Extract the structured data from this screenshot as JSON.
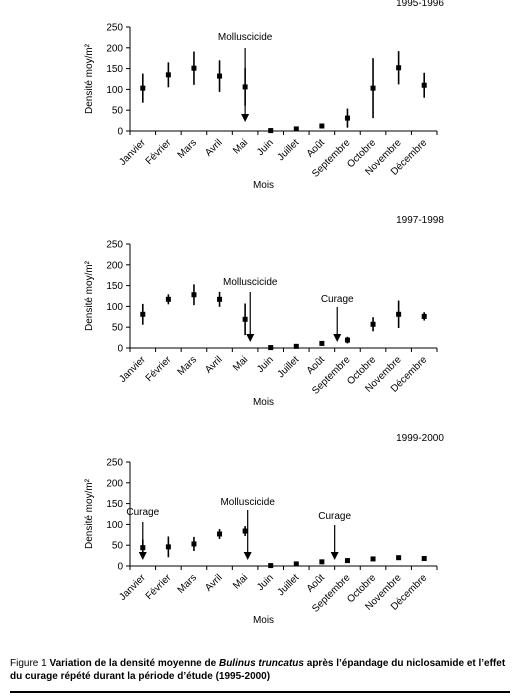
{
  "chart_data": [
    {
      "type": "errorbar",
      "subtitle": "1995-1996",
      "y_label": "Densité  moy/m²",
      "x_label": "Mois",
      "categories": [
        "Janvier",
        "Février",
        "Mars",
        "Avril",
        "Mai",
        "Juin",
        "Juillet",
        "Août",
        "Septembre",
        "Octobre",
        "Novembre",
        "Décembre"
      ],
      "values": [
        103,
        135,
        151,
        132,
        106,
        1,
        5,
        12,
        31,
        103,
        152,
        110
      ],
      "errors": [
        35,
        30,
        40,
        38,
        45,
        0,
        0,
        0,
        23,
        72,
        40,
        30
      ],
      "color": "#000000",
      "ylim": [
        0,
        250
      ],
      "yticks": [
        0,
        50,
        100,
        150,
        200,
        250
      ],
      "annotations": [
        "Molluscicide"
      ]
    },
    {
      "type": "errorbar",
      "subtitle": "1997-1998",
      "y_label": "Densité  moy/m²",
      "x_label": "Mois",
      "categories": [
        "Janvier",
        "Février",
        "Mars",
        "Avril",
        "Mai",
        "Juin",
        "Juillet",
        "Août",
        "Septembre",
        "Octobre",
        "Novembre",
        "Décembre"
      ],
      "values": [
        81,
        117,
        128,
        117,
        69,
        1,
        4,
        11,
        19,
        57,
        81,
        76
      ],
      "errors": [
        25,
        12,
        25,
        18,
        38,
        0,
        0,
        0,
        8,
        17,
        33,
        10
      ],
      "color": "#000000",
      "ylim": [
        0,
        250
      ],
      "yticks": [
        0,
        50,
        100,
        150,
        200,
        250
      ],
      "annotations": [
        "Molluscicide",
        "Curage"
      ]
    },
    {
      "type": "errorbar",
      "subtitle": "1999-2000",
      "y_label": "Densité  moy/m²",
      "x_label": "Mois",
      "categories": [
        "Janvier",
        "Février",
        "Mars",
        "Avril",
        "Mai",
        "Juin",
        "Juillet",
        "Août",
        "Septembre",
        "Octobre",
        "Novembre",
        "Décembre"
      ],
      "values": [
        44,
        46,
        53,
        77,
        84,
        1,
        5,
        10,
        13,
        17,
        20,
        18
      ],
      "errors": [
        20,
        25,
        17,
        12,
        12,
        0,
        0,
        0,
        3,
        4,
        4,
        4
      ],
      "color": "#000000",
      "ylim": [
        0,
        250
      ],
      "yticks": [
        0,
        50,
        100,
        150,
        200,
        250
      ],
      "annotations": [
        "Curage",
        "Molluscicide",
        "Curage"
      ]
    }
  ],
  "caption": {
    "label": "Figure 1",
    "bold_start": "Variation de la densité moyenne de",
    "italic": "Bulinus truncatus",
    "bold_end": "après l’épandage du niclosamide et l’effet du curage répété durant la période d’étude (1995-2000)"
  }
}
